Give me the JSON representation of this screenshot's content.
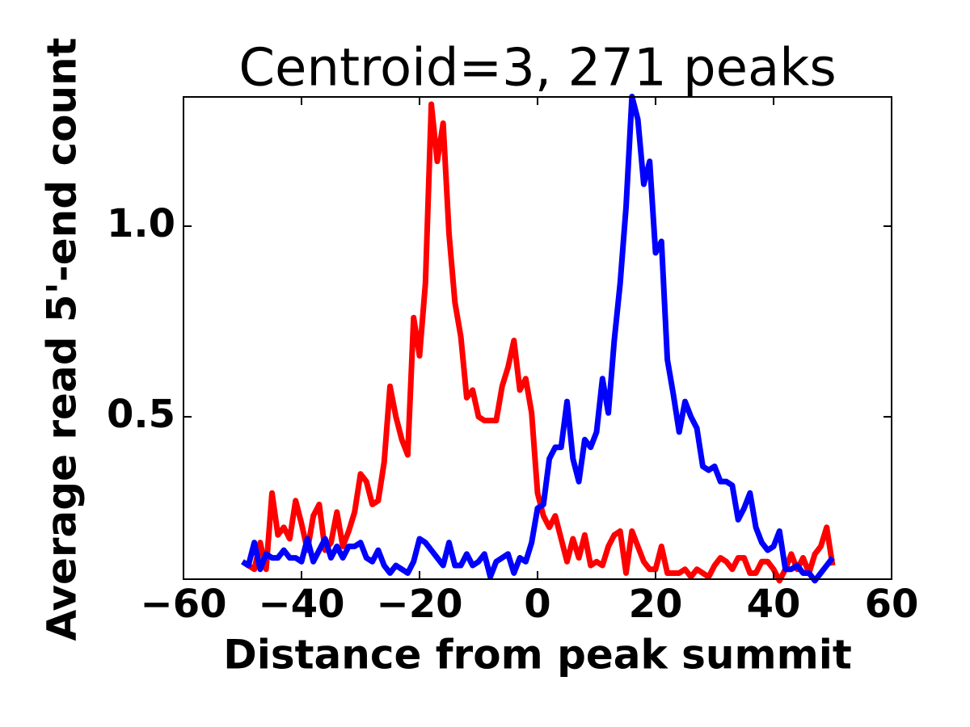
{
  "chart_data": {
    "type": "line",
    "title": "Centroid=3, 271 peaks",
    "xlabel": "Distance from peak summit",
    "ylabel": "Average read 5'-end count",
    "x": [
      -50,
      -49,
      -48,
      -47,
      -46,
      -45,
      -44,
      -43,
      -42,
      -41,
      -40,
      -39,
      -38,
      -37,
      -36,
      -35,
      -34,
      -33,
      -32,
      -31,
      -30,
      -29,
      -28,
      -27,
      -26,
      -25,
      -24,
      -23,
      -22,
      -21,
      -20,
      -19,
      -18,
      -17,
      -16,
      -15,
      -14,
      -13,
      -12,
      -11,
      -10,
      -9,
      -8,
      -7,
      -6,
      -5,
      -4,
      -3,
      -2,
      -1,
      0,
      1,
      2,
      3,
      4,
      5,
      6,
      7,
      8,
      9,
      10,
      11,
      12,
      13,
      14,
      15,
      16,
      17,
      18,
      19,
      20,
      21,
      22,
      23,
      24,
      25,
      26,
      27,
      28,
      29,
      30,
      31,
      32,
      33,
      34,
      35,
      36,
      37,
      38,
      39,
      40,
      41,
      42,
      43,
      44,
      45,
      46,
      47,
      48,
      49,
      50
    ],
    "series": [
      {
        "color": "#ff0000",
        "values": [
          0.12,
          0.11,
          0.1,
          0.17,
          0.1,
          0.3,
          0.19,
          0.21,
          0.18,
          0.28,
          0.22,
          0.15,
          0.24,
          0.27,
          0.15,
          0.17,
          0.25,
          0.16,
          0.2,
          0.25,
          0.35,
          0.33,
          0.27,
          0.28,
          0.38,
          0.58,
          0.5,
          0.44,
          0.4,
          0.76,
          0.66,
          0.85,
          1.32,
          1.17,
          1.27,
          0.98,
          0.8,
          0.71,
          0.55,
          0.57,
          0.5,
          0.49,
          0.49,
          0.49,
          0.58,
          0.63,
          0.7,
          0.57,
          0.6,
          0.51,
          0.3,
          0.24,
          0.21,
          0.24,
          0.18,
          0.12,
          0.18,
          0.13,
          0.19,
          0.11,
          0.12,
          0.11,
          0.16,
          0.19,
          0.2,
          0.09,
          0.2,
          0.16,
          0.12,
          0.1,
          0.1,
          0.16,
          0.09,
          0.09,
          0.09,
          0.1,
          0.08,
          0.1,
          0.09,
          0.08,
          0.11,
          0.13,
          0.12,
          0.1,
          0.13,
          0.13,
          0.09,
          0.09,
          0.12,
          0.12,
          0.1,
          0.07,
          0.1,
          0.14,
          0.1,
          0.13,
          0.09,
          0.14,
          0.16,
          0.21,
          0.11
        ]
      },
      {
        "color": "#0000ff",
        "values": [
          0.12,
          0.11,
          0.17,
          0.1,
          0.14,
          0.13,
          0.13,
          0.15,
          0.13,
          0.13,
          0.12,
          0.18,
          0.12,
          0.15,
          0.18,
          0.13,
          0.16,
          0.13,
          0.16,
          0.16,
          0.17,
          0.13,
          0.12,
          0.15,
          0.11,
          0.09,
          0.11,
          0.1,
          0.09,
          0.12,
          0.18,
          0.17,
          0.15,
          0.13,
          0.11,
          0.17,
          0.11,
          0.11,
          0.14,
          0.11,
          0.12,
          0.14,
          0.08,
          0.12,
          0.13,
          0.14,
          0.09,
          0.13,
          0.12,
          0.17,
          0.26,
          0.27,
          0.39,
          0.42,
          0.42,
          0.54,
          0.39,
          0.33,
          0.44,
          0.42,
          0.46,
          0.6,
          0.51,
          0.7,
          0.85,
          1.05,
          1.34,
          1.28,
          1.11,
          1.17,
          0.93,
          0.96,
          0.65,
          0.56,
          0.46,
          0.54,
          0.5,
          0.47,
          0.37,
          0.36,
          0.37,
          0.33,
          0.33,
          0.32,
          0.23,
          0.26,
          0.3,
          0.21,
          0.17,
          0.15,
          0.16,
          0.2,
          0.1,
          0.1,
          0.11,
          0.09,
          0.09,
          0.07,
          0.09,
          0.11,
          0.13
        ]
      }
    ],
    "xlim": [
      -60,
      60
    ],
    "xticks": [
      {
        "value": -60,
        "label": "−60"
      },
      {
        "value": -40,
        "label": "−40"
      },
      {
        "value": -20,
        "label": "−20"
      },
      0,
      20,
      40,
      60
    ],
    "ylim": [
      0.074,
      1.339
    ],
    "yticks": [
      0.5,
      {
        "value": 1,
        "label": "1.0"
      }
    ],
    "grid": false
  }
}
